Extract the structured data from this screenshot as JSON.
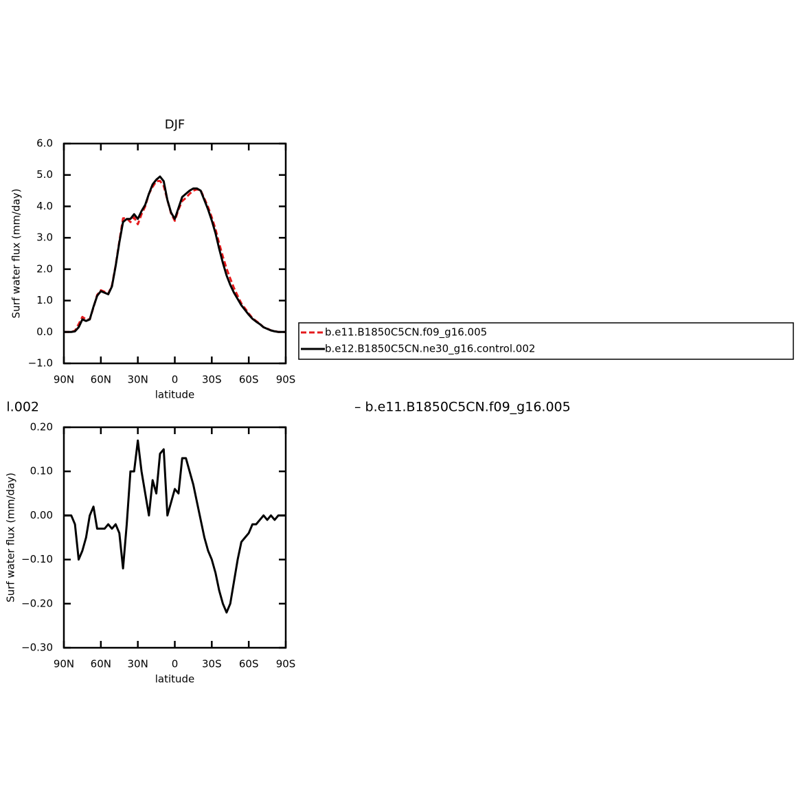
{
  "chart_data": [
    {
      "type": "line",
      "title": "DJF",
      "ylabel": "Surf water flux (mm/day)",
      "xlabel": "latitude",
      "x": [
        90,
        87,
        84,
        81,
        78,
        75,
        72,
        69,
        66,
        63,
        60,
        57,
        54,
        51,
        48,
        45,
        42,
        39,
        36,
        33,
        30,
        27,
        24,
        21,
        18,
        15,
        12,
        9,
        6,
        3,
        0,
        -3,
        -6,
        -9,
        -12,
        -15,
        -18,
        -21,
        -24,
        -27,
        -30,
        -33,
        -36,
        -39,
        -42,
        -45,
        -48,
        -51,
        -54,
        -57,
        -60,
        -63,
        -66,
        -69,
        -72,
        -75,
        -78,
        -81,
        -84,
        -87,
        -90
      ],
      "xlim": [
        90,
        -90
      ],
      "xticks": [
        {
          "value": 90,
          "label": "90N"
        },
        {
          "value": 60,
          "label": "60N"
        },
        {
          "value": 30,
          "label": "30N"
        },
        0,
        {
          "value": -30,
          "label": "30S"
        },
        {
          "value": -60,
          "label": "60S"
        },
        {
          "value": -90,
          "label": "90S"
        }
      ],
      "ylim": [
        -1,
        6
      ],
      "yticks": [
        {
          "value": 6,
          "label": "6.0"
        },
        {
          "value": 5,
          "label": "5.0"
        },
        {
          "value": 4,
          "label": "4.0"
        },
        {
          "value": 3,
          "label": "3.0"
        },
        {
          "value": 2,
          "label": "2.0"
        },
        {
          "value": 1,
          "label": "1.0"
        },
        {
          "value": 0,
          "label": "0.0"
        },
        {
          "value": -1,
          "label": "−1.0"
        }
      ],
      "legend": "right",
      "series": [
        {
          "name": "b.e11.B1850C5CN.f09_g16.005",
          "color": "#e41a1c",
          "dashed": true,
          "values": [
            0,
            0,
            0,
            0.04,
            0.25,
            0.48,
            0.4,
            0.4,
            0.78,
            1.18,
            1.33,
            1.28,
            1.22,
            1.48,
            2.12,
            2.89,
            3.62,
            3.62,
            3.5,
            3.65,
            3.43,
            3.75,
            4.0,
            4.4,
            4.62,
            4.8,
            4.81,
            4.65,
            4.2,
            3.77,
            3.54,
            3.9,
            4.17,
            4.27,
            4.4,
            4.5,
            4.54,
            4.51,
            4.25,
            3.98,
            3.65,
            3.28,
            2.82,
            2.4,
            2.02,
            1.7,
            1.4,
            1.15,
            0.91,
            0.75,
            0.59,
            0.44,
            0.35,
            0.26,
            0.15,
            0.11,
            0.05,
            0.03,
            0,
            0,
            0
          ]
        },
        {
          "name": "b.e12.B1850C5CN.ne30_g16.control.002",
          "color": "#000000",
          "dashed": false,
          "values": [
            0,
            0,
            0,
            0.02,
            0.15,
            0.4,
            0.35,
            0.4,
            0.8,
            1.15,
            1.3,
            1.25,
            1.2,
            1.45,
            2.1,
            2.85,
            3.5,
            3.6,
            3.6,
            3.75,
            3.6,
            3.85,
            4.05,
            4.4,
            4.7,
            4.85,
            4.95,
            4.8,
            4.2,
            3.8,
            3.6,
            3.95,
            4.3,
            4.4,
            4.5,
            4.57,
            4.57,
            4.5,
            4.2,
            3.9,
            3.55,
            3.15,
            2.65,
            2.2,
            1.8,
            1.5,
            1.25,
            1.05,
            0.85,
            0.7,
            0.55,
            0.42,
            0.33,
            0.25,
            0.15,
            0.1,
            0.05,
            0.02,
            0,
            0,
            0
          ]
        }
      ]
    },
    {
      "type": "line",
      "annotations": [
        "l.002",
        "– b.e11.B1850C5CN.f09_g16.005"
      ],
      "ylabel": "Surf water flux (mm/day)",
      "xlabel": "latitude",
      "x": [
        90,
        87,
        84,
        81,
        78,
        75,
        72,
        69,
        66,
        63,
        60,
        57,
        54,
        51,
        48,
        45,
        42,
        39,
        36,
        33,
        30,
        27,
        24,
        21,
        18,
        15,
        12,
        9,
        6,
        3,
        0,
        -3,
        -6,
        -9,
        -12,
        -15,
        -18,
        -21,
        -24,
        -27,
        -30,
        -33,
        -36,
        -39,
        -42,
        -45,
        -48,
        -51,
        -54,
        -57,
        -60,
        -63,
        -66,
        -69,
        -72,
        -75,
        -78,
        -81,
        -84,
        -87,
        -90
      ],
      "xlim": [
        90,
        -90
      ],
      "xticks": [
        {
          "value": 90,
          "label": "90N"
        },
        {
          "value": 60,
          "label": "60N"
        },
        {
          "value": 30,
          "label": "30N"
        },
        0,
        {
          "value": -30,
          "label": "30S"
        },
        {
          "value": -60,
          "label": "60S"
        },
        {
          "value": -90,
          "label": "90S"
        }
      ],
      "ylim": [
        -0.3,
        0.2
      ],
      "yticks": [
        {
          "value": 0.2,
          "label": "0.20"
        },
        {
          "value": 0.1,
          "label": "0.10"
        },
        {
          "value": 0,
          "label": "0.00"
        },
        {
          "value": -0.1,
          "label": "−0.10"
        },
        {
          "value": -0.2,
          "label": "−0.20"
        },
        {
          "value": -0.3,
          "label": "−0.30"
        }
      ],
      "series": [
        {
          "color": "#000000",
          "dashed": false,
          "values": [
            0,
            0,
            0,
            -0.02,
            -0.1,
            -0.08,
            -0.05,
            0,
            0.02,
            -0.03,
            -0.03,
            -0.03,
            -0.02,
            -0.03,
            -0.02,
            -0.04,
            -0.12,
            -0.02,
            0.1,
            0.1,
            0.17,
            0.1,
            0.05,
            0,
            0.08,
            0.05,
            0.14,
            0.15,
            0,
            0.03,
            0.06,
            0.05,
            0.13,
            0.13,
            0.1,
            0.07,
            0.03,
            -0.01,
            -0.05,
            -0.08,
            -0.1,
            -0.13,
            -0.17,
            -0.2,
            -0.22,
            -0.2,
            -0.15,
            -0.1,
            -0.06,
            -0.05,
            -0.04,
            -0.02,
            -0.02,
            -0.01,
            0,
            -0.01,
            0,
            -0.01,
            0,
            0,
            0
          ]
        }
      ]
    }
  ]
}
